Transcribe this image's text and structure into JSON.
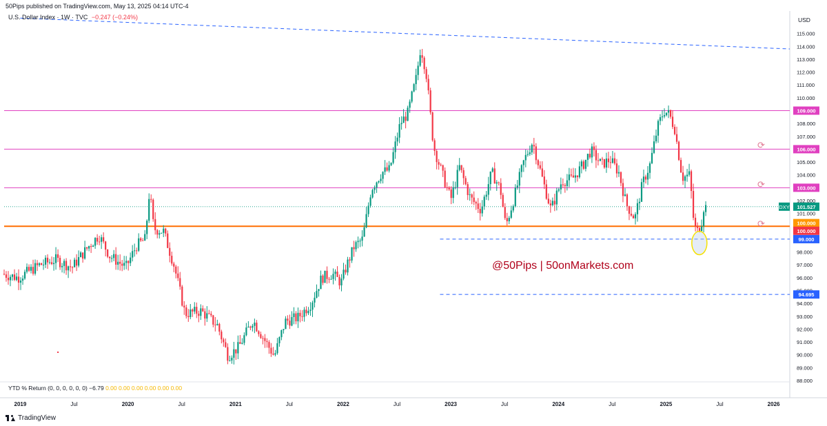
{
  "header": {
    "published_by": "50Pips published on TradingView.com, May 13, 2025 04:14 UTC-4",
    "symbol_title": "U.S. Dollar Index · 1W · TVC",
    "change_text": "−0.247 (−0.24%)",
    "currency": "USD"
  },
  "footer": {
    "indicator_label": "YTD % Return (0, 0, 0, 0, 0, 0)",
    "indicator_value": "−6.79",
    "indicator_zeros": "0.00  0.00  0.00  0.00  0.00  0.00",
    "brand": "TradingView"
  },
  "watermark": "@50Pips | 50onMarkets.com",
  "colors": {
    "up": "#089981",
    "down": "#f23645",
    "resistance": "#e040c0",
    "support_main": "#ff6d00",
    "dashed": "#2962ff",
    "price_label": "#089981",
    "label_109": "#e040c0",
    "label_106": "#e040c0",
    "label_103": "#e040c0",
    "label_100": "#ff9800",
    "label_99": "#2962ff",
    "label_94": "#2962ff",
    "highlight_ellipse": "#f5e100"
  },
  "chart_data": {
    "type": "candlestick",
    "title": "U.S. Dollar Index · 1W · TVC",
    "ylim": [
      88.0,
      116.0
    ],
    "y_ticks": [
      88,
      89,
      90,
      91,
      92,
      93,
      94,
      95,
      96,
      97,
      98,
      99,
      100,
      101,
      102,
      103,
      104,
      105,
      106,
      107,
      108,
      109,
      110,
      111,
      112,
      113,
      114,
      115
    ],
    "y_tick_labels": [
      "88.000",
      "89.000",
      "90.000",
      "91.000",
      "92.000",
      "93.000",
      "94.000",
      "95.000",
      "96.000",
      "97.000",
      "98.000",
      "99.000",
      "100.000",
      "101.000",
      "102.000",
      "103.000",
      "104.000",
      "105.000",
      "106.000",
      "107.000",
      "108.000",
      "109.000",
      "110.000",
      "111.000",
      "112.000",
      "113.000",
      "114.000",
      "115.000"
    ],
    "x_ticks": [
      {
        "t": 2019.0,
        "label": "2019",
        "bold": true
      },
      {
        "t": 2019.5,
        "label": "Jul",
        "bold": false
      },
      {
        "t": 2020.0,
        "label": "2020",
        "bold": true
      },
      {
        "t": 2020.5,
        "label": "Jul",
        "bold": false
      },
      {
        "t": 2021.0,
        "label": "2021",
        "bold": true
      },
      {
        "t": 2021.5,
        "label": "Jul",
        "bold": false
      },
      {
        "t": 2022.0,
        "label": "2022",
        "bold": true
      },
      {
        "t": 2022.5,
        "label": "Jul",
        "bold": false
      },
      {
        "t": 2023.0,
        "label": "2023",
        "bold": true
      },
      {
        "t": 2023.5,
        "label": "Jul",
        "bold": false
      },
      {
        "t": 2024.0,
        "label": "2024",
        "bold": true
      },
      {
        "t": 2024.5,
        "label": "Jul",
        "bold": false
      },
      {
        "t": 2025.0,
        "label": "2025",
        "bold": true
      },
      {
        "t": 2025.5,
        "label": "Jul",
        "bold": false
      },
      {
        "t": 2026.0,
        "label": "2026",
        "bold": true
      }
    ],
    "x_range": [
      2018.85,
      2026.15
    ],
    "price_path": [
      [
        2018.85,
        96.3
      ],
      [
        2019.0,
        96.0
      ],
      [
        2019.2,
        97.0
      ],
      [
        2019.35,
        97.4
      ],
      [
        2019.5,
        96.8
      ],
      [
        2019.65,
        98.4
      ],
      [
        2019.75,
        99.3
      ],
      [
        2019.85,
        97.7
      ],
      [
        2020.0,
        96.8
      ],
      [
        2020.1,
        98.5
      ],
      [
        2020.18,
        99.0
      ],
      [
        2020.22,
        102.8
      ],
      [
        2020.26,
        99.8
      ],
      [
        2020.35,
        99.6
      ],
      [
        2020.45,
        96.9
      ],
      [
        2020.55,
        93.2
      ],
      [
        2020.7,
        93.4
      ],
      [
        2020.85,
        92.3
      ],
      [
        2020.95,
        89.9
      ],
      [
        2021.05,
        90.6
      ],
      [
        2021.18,
        92.7
      ],
      [
        2021.3,
        91.0
      ],
      [
        2021.38,
        89.9
      ],
      [
        2021.48,
        92.6
      ],
      [
        2021.6,
        92.9
      ],
      [
        2021.72,
        94.0
      ],
      [
        2021.82,
        96.0
      ],
      [
        2021.92,
        96.3
      ],
      [
        2022.0,
        95.6
      ],
      [
        2022.05,
        96.9
      ],
      [
        2022.12,
        98.4
      ],
      [
        2022.2,
        99.0
      ],
      [
        2022.28,
        102.9
      ],
      [
        2022.38,
        104.2
      ],
      [
        2022.45,
        104.4
      ],
      [
        2022.55,
        108.0
      ],
      [
        2022.62,
        108.8
      ],
      [
        2022.7,
        111.6
      ],
      [
        2022.74,
        114.0
      ],
      [
        2022.79,
        112.0
      ],
      [
        2022.86,
        106.2
      ],
      [
        2022.95,
        103.8
      ],
      [
        2023.02,
        102.1
      ],
      [
        2023.1,
        104.6
      ],
      [
        2023.2,
        102.2
      ],
      [
        2023.3,
        101.3
      ],
      [
        2023.4,
        104.2
      ],
      [
        2023.48,
        102.9
      ],
      [
        2023.53,
        100.0
      ],
      [
        2023.6,
        102.0
      ],
      [
        2023.7,
        105.1
      ],
      [
        2023.78,
        106.6
      ],
      [
        2023.88,
        103.4
      ],
      [
        2023.95,
        101.3
      ],
      [
        2024.05,
        103.5
      ],
      [
        2024.15,
        103.7
      ],
      [
        2024.25,
        104.8
      ],
      [
        2024.32,
        105.9
      ],
      [
        2024.42,
        104.8
      ],
      [
        2024.5,
        105.2
      ],
      [
        2024.58,
        104.2
      ],
      [
        2024.65,
        101.7
      ],
      [
        2024.73,
        100.6
      ],
      [
        2024.8,
        103.3
      ],
      [
        2024.87,
        104.8
      ],
      [
        2024.94,
        107.7
      ],
      [
        2025.0,
        109.0
      ],
      [
        2025.05,
        108.7
      ],
      [
        2025.1,
        107.6
      ],
      [
        2025.17,
        103.8
      ],
      [
        2025.24,
        104.0
      ],
      [
        2025.28,
        100.0
      ],
      [
        2025.31,
        99.6
      ],
      [
        2025.35,
        100.4
      ],
      [
        2025.37,
        101.5
      ]
    ],
    "horizontal_levels": [
      {
        "value": 109.0,
        "label": "109.000",
        "style": "solid",
        "color_key": "resistance"
      },
      {
        "value": 106.0,
        "label": "106.000",
        "style": "solid",
        "color_key": "resistance"
      },
      {
        "value": 103.0,
        "label": "103.000",
        "style": "solid",
        "color_key": "resistance"
      },
      {
        "value": 100.0,
        "label": "100.000",
        "style": "solid-thick",
        "color_key": "support_main"
      },
      {
        "value": 99.0,
        "label": "99.000",
        "style": "dashed",
        "color_key": "dashed",
        "from_t": 2022.9
      },
      {
        "value": 94.695,
        "label": "94.695",
        "style": "dashed",
        "color_key": "dashed",
        "from_t": 2022.9
      }
    ],
    "last_price": {
      "symbol": "DXY",
      "value": "101.527",
      "value_num": 101.527
    },
    "extra_label": {
      "value": "100.000",
      "value_num": 99.7
    },
    "trendline": {
      "t1": 2019.0,
      "v1": 116.2,
      "t2": 2026.15,
      "v2": 113.8
    },
    "highlight": {
      "t": 2025.31,
      "v": 98.7
    }
  }
}
